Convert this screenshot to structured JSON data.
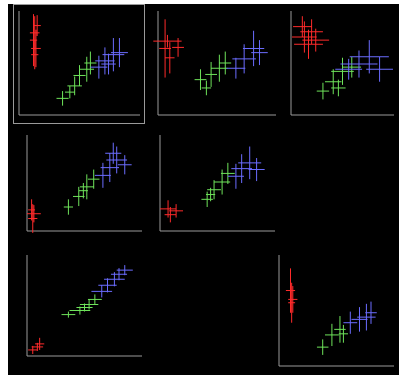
{
  "view": "scatter-plot-matrix",
  "selected_panel": "p11",
  "colors": {
    "red": "#ff2a2a",
    "green": "#6ee35a",
    "blue": "#6b6cff",
    "axis": "#9a9a9a"
  },
  "chart_data": [
    {
      "id": "p11",
      "type": "scatter",
      "xlim": [
        0,
        10
      ],
      "ylim": [
        0,
        10
      ],
      "series": [
        {
          "color": "red",
          "points": [
            [
              1.3,
              7.9,
              0.4,
              1.6
            ],
            [
              1.2,
              7.2,
              0.3,
              2.5
            ],
            [
              1.4,
              6.4,
              0.4,
              1.8
            ],
            [
              1.3,
              5.8,
              0.3,
              1.4
            ],
            [
              1.5,
              8.6,
              0.3,
              1.0
            ]
          ]
        },
        {
          "color": "green",
          "points": [
            [
              3.6,
              1.6,
              0.5,
              0.7
            ],
            [
              4.6,
              2.8,
              0.6,
              0.9
            ],
            [
              5.0,
              3.8,
              0.5,
              1.0
            ],
            [
              5.6,
              4.4,
              0.6,
              1.2
            ],
            [
              4.2,
              2.2,
              0.4,
              0.6
            ],
            [
              5.9,
              5.0,
              0.5,
              1.1
            ]
          ]
        },
        {
          "color": "blue",
          "points": [
            [
              6.6,
              4.6,
              0.7,
              1.1
            ],
            [
              7.1,
              5.2,
              0.8,
              1.3
            ],
            [
              7.8,
              5.8,
              0.9,
              1.6
            ],
            [
              8.3,
              6.0,
              0.7,
              1.4
            ],
            [
              7.4,
              4.9,
              0.6,
              1.0
            ]
          ]
        }
      ]
    },
    {
      "id": "p12",
      "type": "scatter",
      "xlim": [
        0,
        10
      ],
      "ylim": [
        0,
        10
      ],
      "series": [
        {
          "color": "red",
          "points": [
            [
              0.6,
              6.4,
              0.5,
              2.8
            ],
            [
              0.8,
              7.1,
              1.2,
              0.6
            ],
            [
              1.0,
              5.5,
              0.4,
              1.5
            ],
            [
              1.7,
              6.5,
              0.5,
              0.9
            ]
          ]
        },
        {
          "color": "green",
          "points": [
            [
              3.6,
              3.4,
              0.5,
              1.0
            ],
            [
              4.5,
              3.9,
              0.5,
              1.2
            ],
            [
              5.2,
              4.5,
              0.7,
              1.3
            ],
            [
              4.1,
              2.6,
              0.4,
              0.7
            ],
            [
              5.7,
              5.0,
              0.5,
              1.1
            ]
          ]
        },
        {
          "color": "blue",
          "points": [
            [
              6.6,
              4.5,
              0.8,
              1.0
            ],
            [
              7.3,
              5.4,
              1.0,
              1.4
            ],
            [
              8.1,
              6.4,
              0.9,
              1.7
            ],
            [
              8.6,
              6.0,
              0.7,
              1.2
            ]
          ]
        }
      ]
    },
    {
      "id": "p13",
      "type": "scatter",
      "xlim": [
        0,
        10
      ],
      "ylim": [
        0,
        10
      ],
      "series": [
        {
          "color": "red",
          "points": [
            [
              1.3,
              7.5,
              1.2,
              1.5
            ],
            [
              2.0,
              8.0,
              1.1,
              1.2
            ],
            [
              1.7,
              6.8,
              1.4,
              1.4
            ],
            [
              1.1,
              8.5,
              0.9,
              1.0
            ],
            [
              2.4,
              7.2,
              1.3,
              1.1
            ]
          ]
        },
        {
          "color": "green",
          "points": [
            [
              3.1,
              2.3,
              0.6,
              0.8
            ],
            [
              4.1,
              3.2,
              0.8,
              1.2
            ],
            [
              5.0,
              4.2,
              1.1,
              1.3
            ],
            [
              5.9,
              4.6,
              0.9,
              1.0
            ],
            [
              4.6,
              2.6,
              0.7,
              0.8
            ]
          ]
        },
        {
          "color": "blue",
          "points": [
            [
              5.6,
              4.4,
              1.3,
              1.0
            ],
            [
              6.6,
              4.9,
              1.8,
              1.3
            ],
            [
              7.6,
              5.6,
              1.9,
              1.6
            ],
            [
              8.6,
              4.4,
              1.3,
              1.2
            ]
          ]
        }
      ]
    },
    {
      "id": "p21",
      "type": "scatter",
      "xlim": [
        0,
        10
      ],
      "ylim": [
        0,
        10
      ],
      "series": [
        {
          "color": "red",
          "points": [
            [
              0.5,
              1.3,
              0.4,
              1.5
            ],
            [
              0.6,
              1.8,
              0.6,
              0.9
            ],
            [
              0.4,
              2.2,
              0.3,
              1.1
            ]
          ]
        },
        {
          "color": "green",
          "points": [
            [
              3.6,
              2.5,
              0.4,
              0.8
            ],
            [
              4.5,
              3.6,
              0.5,
              1.0
            ],
            [
              5.2,
              4.6,
              0.6,
              1.3
            ],
            [
              5.8,
              5.4,
              0.5,
              1.0
            ],
            [
              4.9,
              4.2,
              0.4,
              0.8
            ]
          ]
        },
        {
          "color": "blue",
          "points": [
            [
              6.6,
              5.8,
              0.7,
              1.3
            ],
            [
              7.2,
              6.6,
              0.8,
              1.5
            ],
            [
              7.8,
              7.4,
              0.9,
              1.4
            ],
            [
              8.5,
              6.9,
              0.6,
              1.0
            ],
            [
              7.5,
              8.1,
              0.7,
              1.1
            ]
          ]
        }
      ]
    },
    {
      "id": "p22",
      "type": "scatter",
      "xlim": [
        0,
        10
      ],
      "ylim": [
        0,
        10
      ],
      "series": [
        {
          "color": "red",
          "points": [
            [
              0.7,
              2.3,
              0.7,
              0.9
            ],
            [
              0.9,
              1.7,
              0.5,
              0.8
            ],
            [
              1.4,
              2.1,
              0.6,
              0.7
            ]
          ]
        },
        {
          "color": "green",
          "points": [
            [
              4.1,
              3.3,
              0.5,
              0.8
            ],
            [
              4.7,
              4.3,
              0.6,
              1.0
            ],
            [
              5.4,
              5.1,
              0.7,
              1.3
            ],
            [
              5.9,
              6.0,
              0.6,
              1.1
            ],
            [
              4.4,
              3.8,
              0.4,
              0.7
            ]
          ]
        },
        {
          "color": "blue",
          "points": [
            [
              6.6,
              5.7,
              0.7,
              1.3
            ],
            [
              7.1,
              6.5,
              0.9,
              1.5
            ],
            [
              7.8,
              7.1,
              1.0,
              1.7
            ],
            [
              8.4,
              6.4,
              0.7,
              1.2
            ]
          ]
        }
      ]
    },
    {
      "id": "p31",
      "type": "scatter",
      "xlim": [
        0,
        10
      ],
      "ylim": [
        0,
        10
      ],
      "series": [
        {
          "color": "red",
          "points": [
            [
              0.5,
              0.6,
              0.4,
              0.4
            ],
            [
              0.9,
              0.9,
              0.5,
              0.4
            ],
            [
              1.1,
              1.2,
              0.4,
              0.6
            ]
          ]
        },
        {
          "color": "green",
          "points": [
            [
              3.6,
              4.1,
              0.6,
              0.3
            ],
            [
              4.6,
              4.5,
              0.9,
              0.4
            ],
            [
              5.4,
              5.1,
              0.8,
              0.5
            ],
            [
              5.9,
              5.6,
              0.6,
              0.5
            ],
            [
              5.0,
              4.8,
              0.7,
              0.4
            ]
          ]
        },
        {
          "color": "blue",
          "points": [
            [
              6.5,
              6.4,
              0.9,
              0.6
            ],
            [
              7.0,
              7.0,
              0.8,
              0.7
            ],
            [
              7.6,
              7.6,
              0.9,
              0.7
            ],
            [
              8.0,
              8.1,
              0.7,
              0.6
            ],
            [
              8.5,
              8.5,
              0.7,
              0.5
            ]
          ]
        }
      ]
    },
    {
      "id": "p33",
      "type": "scatter",
      "xlim": [
        0,
        10
      ],
      "ylim": [
        0,
        10
      ],
      "series": [
        {
          "color": "red",
          "points": [
            [
              1.0,
              6.8,
              0.4,
              2.0
            ],
            [
              1.1,
              5.7,
              0.3,
              1.8
            ],
            [
              1.2,
              6.0,
              0.4,
              1.2
            ]
          ]
        },
        {
          "color": "green",
          "points": [
            [
              3.8,
              1.7,
              0.5,
              0.7
            ],
            [
              4.6,
              2.8,
              0.6,
              1.0
            ],
            [
              5.3,
              3.3,
              0.5,
              1.2
            ],
            [
              5.6,
              2.9,
              0.4,
              0.8
            ]
          ]
        },
        {
          "color": "blue",
          "points": [
            [
              6.2,
              3.9,
              0.6,
              1.0
            ],
            [
              7.0,
              4.2,
              0.7,
              1.1
            ],
            [
              7.6,
              4.4,
              0.8,
              1.2
            ],
            [
              8.0,
              4.8,
              0.5,
              1.0
            ]
          ]
        }
      ]
    }
  ]
}
